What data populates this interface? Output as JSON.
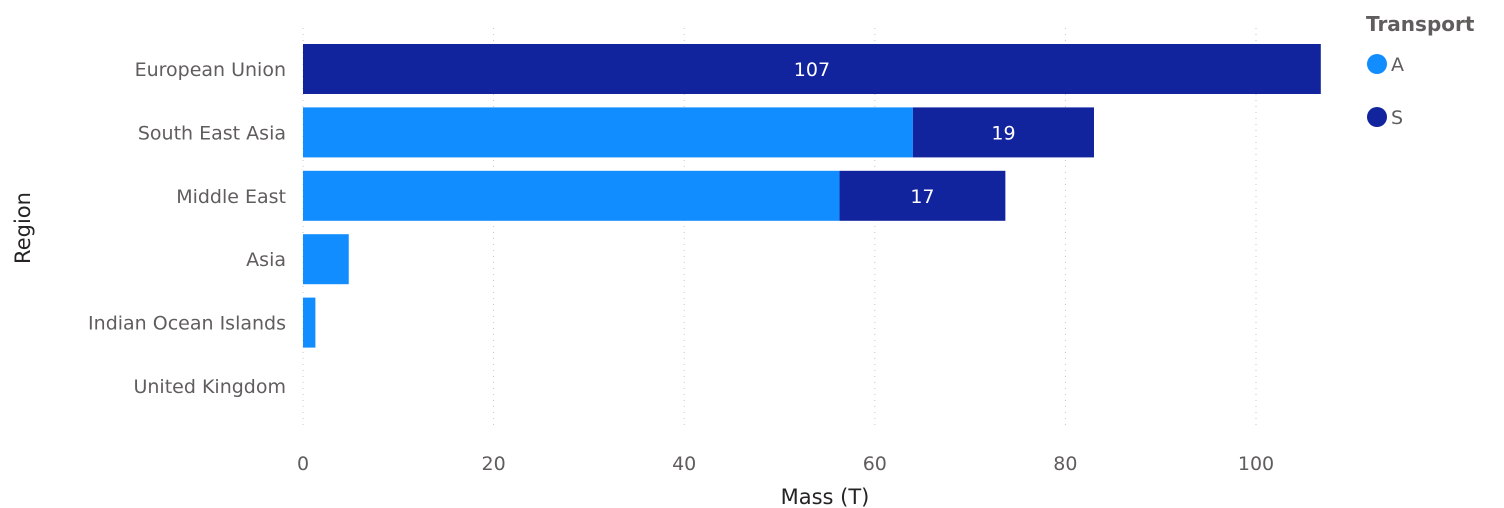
{
  "chart_data": {
    "type": "bar",
    "orientation": "horizontal",
    "stacked": true,
    "categories": [
      "European Union",
      "South East Asia",
      "Middle East",
      "Asia",
      "Indian Ocean Islands",
      "United Kingdom"
    ],
    "series": [
      {
        "name": "A",
        "color": "#118dff",
        "values": [
          0,
          64,
          56.3,
          4.8,
          1.3,
          0
        ]
      },
      {
        "name": "S",
        "color": "#12239e",
        "values": [
          106.8,
          19,
          17.4,
          0,
          0,
          0
        ]
      }
    ],
    "data_labels": [
      {
        "category": "European Union",
        "series": "S",
        "text": "107"
      },
      {
        "category": "South East Asia",
        "series": "S",
        "text": "19"
      },
      {
        "category": "Middle East",
        "series": "S",
        "text": "17"
      }
    ],
    "xlabel": "Mass (T)",
    "ylabel": "Region",
    "xlim": [
      0,
      110
    ],
    "x_ticks": [
      0,
      20,
      40,
      60,
      80,
      100
    ],
    "x_tick_labels": [
      "0",
      "20",
      "40",
      "60",
      "80",
      "100"
    ],
    "grid": true,
    "legend": {
      "title": "Transport",
      "placement": "top-right"
    }
  }
}
